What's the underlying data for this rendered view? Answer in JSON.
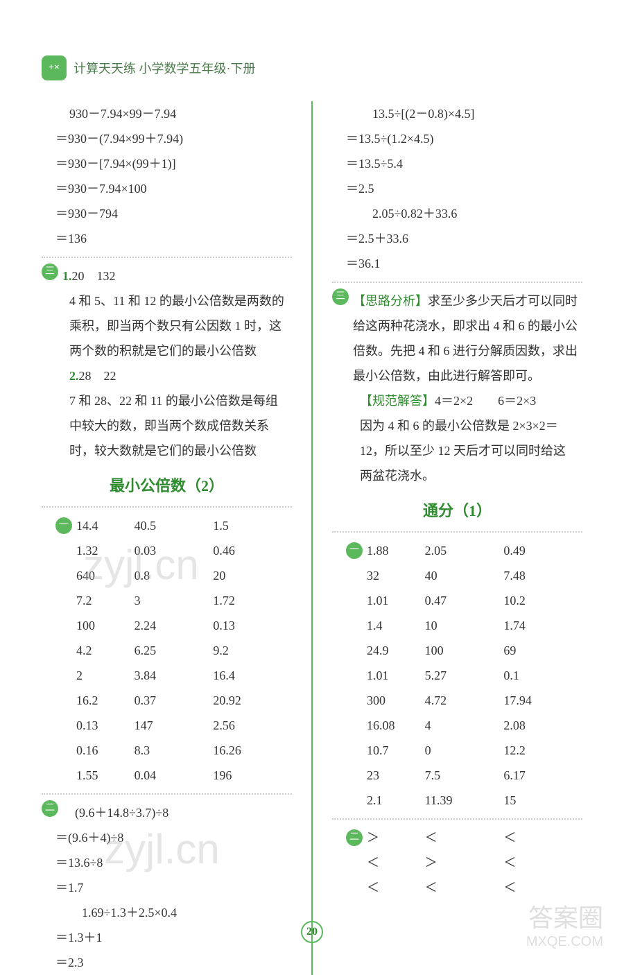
{
  "header": {
    "icon_text": "+×",
    "title": "计算天天练 小学数学五年级·下册"
  },
  "left": {
    "calc1": {
      "lines": [
        "930－7.94×99－7.94",
        "＝930－(7.94×99＋7.94)",
        "＝930－[7.94×(99＋1)]",
        "＝930－7.94×100",
        "＝930－794",
        "＝136"
      ]
    },
    "item1": {
      "lead": "1.",
      "vals": "20　132",
      "text1": "4 和 5、11 和 12 的最小公倍数是两数的乘积，即当两个数只有公因数 1 时，这两个数的积就是它们的最小公倍数",
      "lead2": "2.",
      "vals2": "28　22",
      "text2": "7 和 28、22 和 11 的最小公倍数是每组中较大的数，即当两个数成倍数关系时，较大数就是它们的最小公倍数"
    },
    "section_title": "最小公倍数（2）",
    "table_rows": [
      [
        "14.4",
        "40.5",
        "1.5"
      ],
      [
        "1.32",
        "0.03",
        "0.46"
      ],
      [
        "640",
        "0.8",
        "20"
      ],
      [
        "7.2",
        "3",
        "1.72"
      ],
      [
        "100",
        "2.24",
        "0.13"
      ],
      [
        "4.2",
        "6.25",
        "9.2"
      ],
      [
        "2",
        "3.84",
        "16.4"
      ],
      [
        "16.2",
        "0.37",
        "20.92"
      ],
      [
        "0.13",
        "147",
        "2.56"
      ],
      [
        "0.16",
        "8.3",
        "16.26"
      ],
      [
        "1.55",
        "0.04",
        "196"
      ]
    ],
    "calc2": {
      "lines": [
        "　(9.6＋14.8÷3.7)÷8",
        "＝(9.6＋4)÷8",
        "＝13.6÷8",
        "＝1.7",
        "　1.69÷1.3＋2.5×0.4",
        "＝1.3＋1",
        "＝2.3"
      ]
    }
  },
  "right": {
    "calc1": {
      "lines": [
        "　13.5÷[(2－0.8)×4.5]",
        "＝13.5÷(1.2×4.5)",
        "＝13.5÷5.4",
        "＝2.5",
        "　2.05÷0.82＋33.6",
        "＝2.5＋33.6",
        "＝36.1"
      ]
    },
    "analysis": {
      "label": "【思路分析】",
      "text": "求至少多少天后才可以同时给这两种花浇水，即求出 4 和 6 的最小公倍数。先把 4 和 6 进行分解质因数，求出最小公倍数，由此进行解答即可。",
      "ans_label": "【规范解答】",
      "ans1": "4＝2×2　　6＝2×3",
      "ans2": "因为 4 和 6 的最小公倍数是 2×3×2＝12，所以至少 12 天后才可以同时给这两盆花浇水。"
    },
    "section_title": "通分（1）",
    "table_rows": [
      [
        "1.88",
        "2.05",
        "0.49"
      ],
      [
        "32",
        "40",
        "7.48"
      ],
      [
        "1.01",
        "0.47",
        "10.2"
      ],
      [
        "1.4",
        "10",
        "1.74"
      ],
      [
        "24.9",
        "100",
        "69"
      ],
      [
        "1.01",
        "5.27",
        "0.1"
      ],
      [
        "300",
        "4.72",
        "17.94"
      ],
      [
        "16.08",
        "4",
        "2.08"
      ],
      [
        "10.7",
        "0",
        "12.2"
      ],
      [
        "23",
        "7.5",
        "6.17"
      ],
      [
        "2.1",
        "11.39",
        "15"
      ]
    ],
    "compare_rows": [
      [
        "＞",
        "＜",
        "＜"
      ],
      [
        "＜",
        "＞",
        "＜"
      ],
      [
        "＜",
        "＜",
        "＜"
      ]
    ]
  },
  "page_number": "20",
  "watermarks": {
    "w1": "zyjl.cn",
    "w2": "zyjl.cn",
    "bottom1": "答案圈",
    "bottom2": "MXQE.COM"
  },
  "colors": {
    "green": "#2e8b2e",
    "badge_bg": "#5cb85c"
  }
}
